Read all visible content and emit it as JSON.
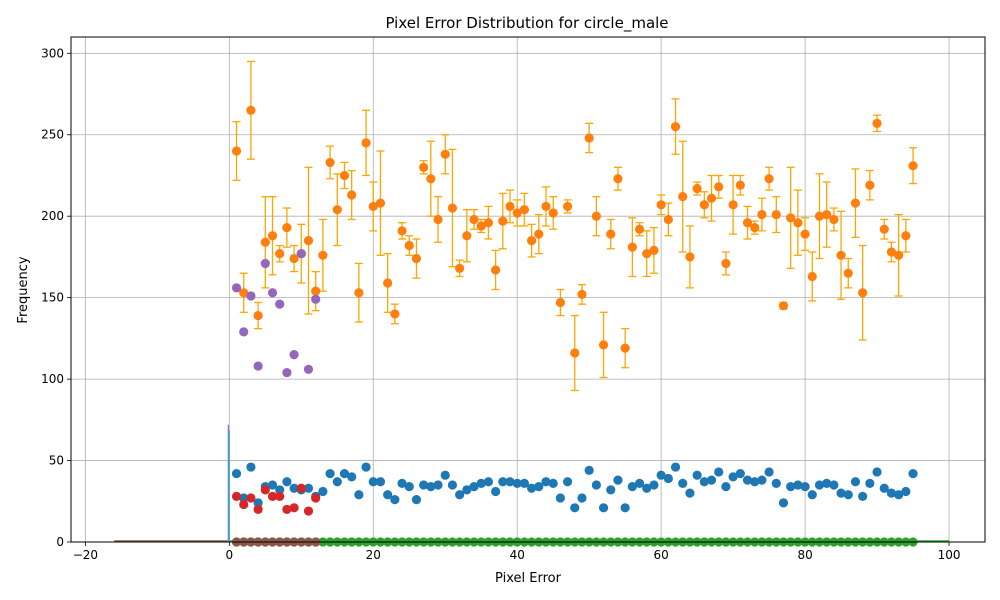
{
  "chart_data": {
    "type": "scatter",
    "title": "Pixel Error Distribution for circle_male",
    "xlabel": "Pixel Error",
    "ylabel": "Frequency",
    "xlim": [
      -22,
      105
    ],
    "ylim": [
      0,
      310
    ],
    "xticks": [
      -20,
      0,
      20,
      40,
      60,
      80,
      100
    ],
    "yticks": [
      0,
      50,
      100,
      150,
      200,
      250,
      300
    ],
    "grid": true,
    "legend": "none",
    "colors": {
      "blue": "#1f77b4",
      "orange": "#ff7f0e",
      "green": "#2ca02c",
      "red": "#d62728",
      "purple": "#9467bd",
      "brown": "#8c564b",
      "cyan": "#17becf",
      "errorbar": "#ffa500"
    },
    "series": [
      {
        "color_key": "orange",
        "x": [
          1,
          2,
          3,
          4,
          5,
          6,
          7,
          8,
          9,
          10,
          11,
          12,
          13,
          14,
          15,
          16,
          17,
          18,
          19,
          20,
          21,
          22,
          23,
          24,
          25,
          26,
          27,
          28,
          29,
          30,
          31,
          32,
          33,
          34,
          35,
          36,
          37,
          38,
          39,
          40,
          41,
          42,
          43,
          44,
          45,
          46,
          47,
          48,
          49,
          50,
          51,
          52,
          53,
          54,
          55,
          56,
          57,
          58,
          59,
          60,
          61,
          62,
          63,
          64,
          65,
          66,
          67,
          68,
          69,
          70,
          71,
          72,
          73,
          74,
          75,
          76,
          77,
          78,
          79,
          80,
          81,
          82,
          83,
          84,
          85,
          86,
          87,
          88,
          89,
          90,
          91,
          92,
          93,
          94,
          95
        ],
        "y": [
          240,
          153,
          265,
          139,
          184,
          188,
          177,
          193,
          174,
          177,
          185,
          154,
          176,
          233,
          204,
          225,
          213,
          153,
          245,
          206,
          208,
          159,
          140,
          191,
          182,
          174,
          230,
          223,
          198,
          238,
          205,
          168,
          188,
          198,
          194,
          196,
          167,
          197,
          206,
          202,
          204,
          185,
          189,
          206,
          202,
          147,
          206,
          116,
          152,
          248,
          200,
          121,
          189,
          223,
          119,
          181,
          192,
          177,
          179,
          207,
          198,
          255,
          212,
          175,
          217,
          207,
          211,
          218,
          171,
          207,
          219,
          196,
          193,
          201,
          223,
          201,
          145,
          199,
          196,
          189,
          163,
          200,
          201,
          198,
          176,
          165,
          208,
          153,
          219,
          257,
          192,
          178,
          176,
          188,
          231
        ],
        "err": [
          18,
          12,
          30,
          8,
          28,
          24,
          5,
          12,
          8,
          18,
          45,
          12,
          22,
          10,
          22,
          8,
          15,
          18,
          20,
          15,
          32,
          18,
          6,
          5,
          6,
          12,
          4,
          23,
          14,
          12,
          36,
          5,
          16,
          6,
          4,
          10,
          12,
          17,
          10,
          8,
          10,
          10,
          12,
          12,
          10,
          8,
          4,
          23,
          6,
          9,
          12,
          20,
          9,
          7,
          12,
          18,
          4,
          14,
          14,
          6,
          10,
          17,
          34,
          19,
          4,
          8,
          14,
          7,
          7,
          18,
          6,
          10,
          4,
          10,
          7,
          11,
          2,
          31,
          20,
          10,
          15,
          26,
          20,
          7,
          27,
          9,
          21,
          29,
          9,
          5,
          6,
          6,
          25,
          10,
          11
        ]
      },
      {
        "color_key": "blue",
        "x": [
          1,
          2,
          3,
          4,
          5,
          6,
          7,
          8,
          9,
          10,
          11,
          12,
          13,
          14,
          15,
          16,
          17,
          18,
          19,
          20,
          21,
          22,
          23,
          24,
          25,
          26,
          27,
          28,
          29,
          30,
          31,
          32,
          33,
          34,
          35,
          36,
          37,
          38,
          39,
          40,
          41,
          42,
          43,
          44,
          45,
          46,
          47,
          48,
          49,
          50,
          51,
          52,
          53,
          54,
          55,
          56,
          57,
          58,
          59,
          60,
          61,
          62,
          63,
          64,
          65,
          66,
          67,
          68,
          69,
          70,
          71,
          72,
          73,
          74,
          75,
          76,
          77,
          78,
          79,
          80,
          81,
          82,
          83,
          84,
          85,
          86,
          87,
          88,
          89,
          90,
          91,
          92,
          93,
          94,
          95
        ],
        "y": [
          42,
          27,
          46,
          24,
          34,
          35,
          32,
          37,
          33,
          32,
          33,
          28,
          31,
          42,
          37,
          42,
          40,
          29,
          46,
          37,
          37,
          29,
          26,
          36,
          34,
          26,
          35,
          34,
          35,
          41,
          35,
          29,
          32,
          34,
          36,
          37,
          31,
          37,
          37,
          36,
          36,
          33,
          34,
          37,
          36,
          27,
          37,
          21,
          27,
          44,
          35,
          21,
          32,
          38,
          21,
          34,
          36,
          33,
          35,
          41,
          39,
          46,
          36,
          30,
          41,
          37,
          38,
          43,
          34,
          40,
          42,
          38,
          37,
          38,
          43,
          36,
          24,
          34,
          35,
          34,
          29,
          35,
          36,
          35,
          30,
          29,
          37,
          28,
          36,
          43,
          33,
          30,
          29,
          31,
          42
        ]
      },
      {
        "color_key": "purple",
        "x": [
          1,
          2,
          3,
          4,
          5,
          6,
          7,
          8,
          9,
          10,
          11,
          12
        ],
        "y": [
          156,
          129,
          151,
          108,
          171,
          153,
          146,
          104,
          115,
          177,
          106,
          149
        ]
      },
      {
        "color_key": "red",
        "x": [
          1,
          2,
          3,
          4,
          5,
          6,
          7,
          8,
          9,
          10,
          11,
          12
        ],
        "y": [
          28,
          23,
          27,
          20,
          32,
          28,
          28,
          20,
          21,
          33,
          19,
          27
        ]
      },
      {
        "color_key": "green",
        "x": [
          1,
          2,
          3,
          4,
          5,
          6,
          7,
          8,
          9,
          10,
          11,
          12,
          13,
          14,
          15,
          16,
          17,
          18,
          19,
          20,
          21,
          22,
          23,
          24,
          25,
          26,
          27,
          28,
          29,
          30,
          31,
          32,
          33,
          34,
          35,
          36,
          37,
          38,
          39,
          40,
          41,
          42,
          43,
          44,
          45,
          46,
          47,
          48,
          49,
          50,
          51,
          52,
          53,
          54,
          55,
          56,
          57,
          58,
          59,
          60,
          61,
          62,
          63,
          64,
          65,
          66,
          67,
          68,
          69,
          70,
          71,
          72,
          73,
          74,
          75,
          76,
          77,
          78,
          79,
          80,
          81,
          82,
          83,
          84,
          85,
          86,
          87,
          88,
          89,
          90,
          91,
          92,
          93,
          94,
          95
        ],
        "y": 0
      },
      {
        "color_key": "brown",
        "x": [
          1,
          2,
          3,
          4,
          5,
          6,
          7,
          8,
          9,
          10,
          11,
          12
        ],
        "y": 0
      }
    ],
    "spike": {
      "x": 0,
      "y": 72
    },
    "baseline_range": [
      -16,
      100
    ]
  }
}
